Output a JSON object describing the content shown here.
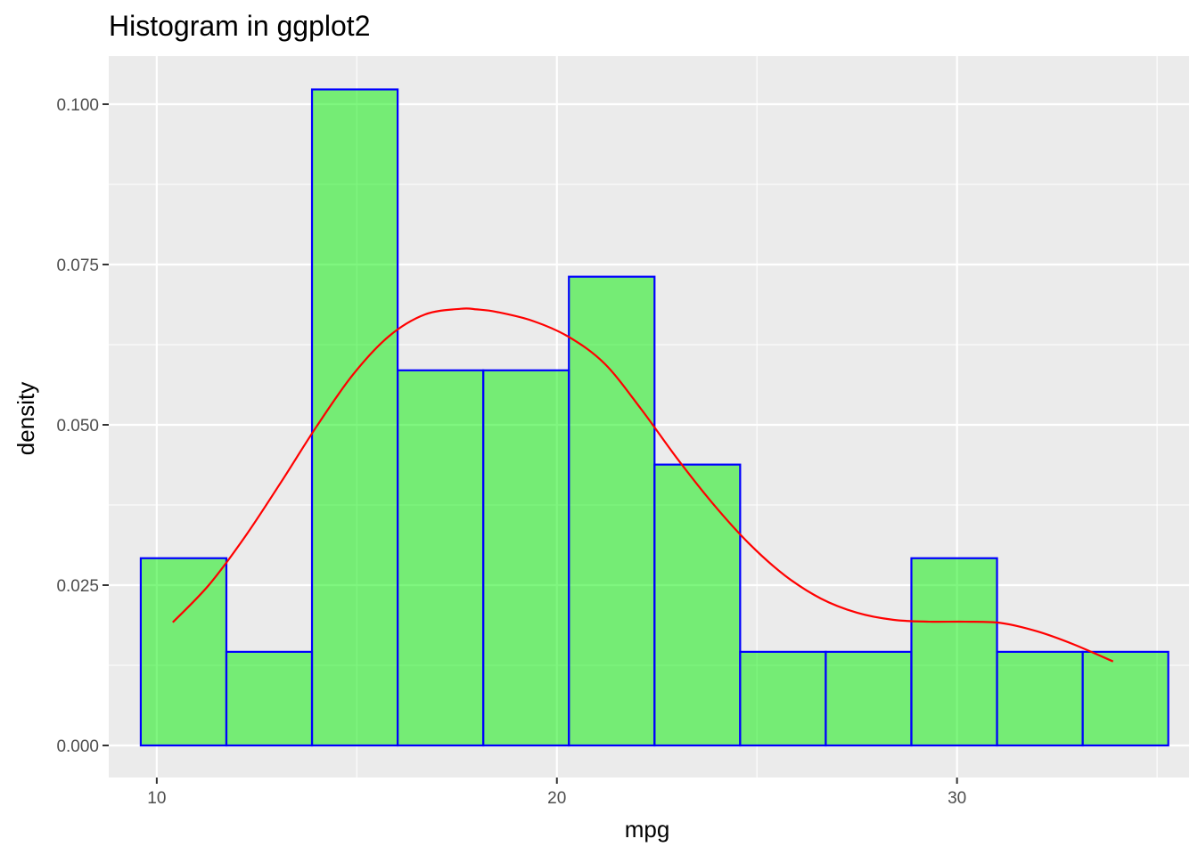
{
  "chart_data": {
    "type": "bar",
    "title": "Histogram in ggplot2",
    "xlabel": "mpg",
    "ylabel": "density",
    "xlim": [
      8.8,
      35.8
    ],
    "ylim": [
      -0.005,
      0.1075
    ],
    "x_ticks": [
      10,
      20,
      30
    ],
    "x_tick_labels": [
      "10",
      "20",
      "30"
    ],
    "y_ticks": [
      0,
      0.025,
      0.05,
      0.075,
      0.1
    ],
    "y_tick_labels": [
      "0.000",
      "0.025",
      "0.050",
      "0.075",
      "0.100"
    ],
    "grid": true,
    "bar_fill": "#00ee00",
    "bar_fill_opacity": 0.5,
    "bar_stroke": "#0000ff",
    "curve_color": "#ff0000",
    "panel_background": "#ebebeb",
    "bins": [
      {
        "x0": 9.6,
        "x1": 11.74,
        "density": 0.0292
      },
      {
        "x0": 11.74,
        "x1": 13.88,
        "density": 0.0146
      },
      {
        "x0": 13.88,
        "x1": 16.02,
        "density": 0.1023
      },
      {
        "x0": 16.02,
        "x1": 18.16,
        "density": 0.0585
      },
      {
        "x0": 18.16,
        "x1": 20.3,
        "density": 0.0585
      },
      {
        "x0": 20.3,
        "x1": 22.44,
        "density": 0.0731
      },
      {
        "x0": 22.44,
        "x1": 24.58,
        "density": 0.0438
      },
      {
        "x0": 24.58,
        "x1": 26.72,
        "density": 0.0146
      },
      {
        "x0": 26.72,
        "x1": 28.86,
        "density": 0.0146
      },
      {
        "x0": 28.86,
        "x1": 31.0,
        "density": 0.0292
      },
      {
        "x0": 31.0,
        "x1": 33.14,
        "density": 0.0146
      },
      {
        "x0": 33.14,
        "x1": 35.28,
        "density": 0.0146
      }
    ],
    "density_curve": {
      "x": [
        10.4,
        11.3,
        12.2,
        13.1,
        14.0,
        14.9,
        15.8,
        16.7,
        17.6,
        18.0,
        18.5,
        19.4,
        20.3,
        21.2,
        22.1,
        23.0,
        23.9,
        24.8,
        25.7,
        26.6,
        27.5,
        28.4,
        29.3,
        30.2,
        31.1,
        32.0,
        32.9,
        33.9
      ],
      "y": [
        0.0192,
        0.025,
        0.0325,
        0.041,
        0.0498,
        0.0578,
        0.0638,
        0.0672,
        0.0681,
        0.068,
        0.0676,
        0.0662,
        0.0637,
        0.0595,
        0.0525,
        0.0448,
        0.0377,
        0.0315,
        0.0265,
        0.0229,
        0.0207,
        0.0196,
        0.0193,
        0.0193,
        0.0191,
        0.0178,
        0.0158,
        0.0131
      ]
    }
  }
}
